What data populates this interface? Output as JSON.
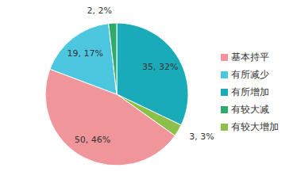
{
  "chart_data": {
    "type": "pie",
    "categories": [
      "有所增加",
      "有较大增加",
      "基本持平",
      "有所减少",
      "有较大减"
    ],
    "values": [
      35,
      3,
      50,
      19,
      2
    ],
    "value_labels": [
      "35, 32%",
      "3, 3%",
      "50, 46%",
      "19, 17%",
      "2, 2%"
    ],
    "colors": [
      "#1aabb8",
      "#8cc04a",
      "#f0969a",
      "#4dc7e0",
      "#2eaa6a"
    ],
    "data_labels": true,
    "legend": "right"
  }
}
